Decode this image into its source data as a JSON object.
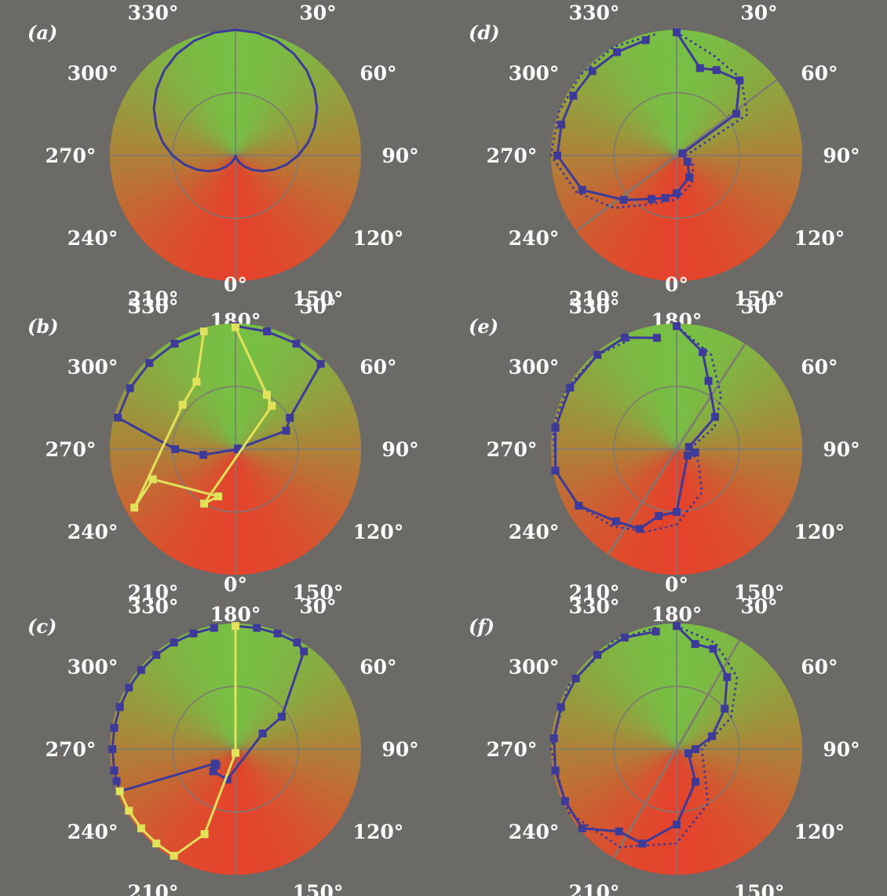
{
  "figure": {
    "colors": {
      "background": "#6b6a67",
      "front_green": "#77bf45",
      "back_red": "#e4442c",
      "blue_series": "#3d3a9a",
      "yellow_series": "#e2e25a",
      "axis_line": "#7d7a73"
    }
  },
  "chart_data": [
    {
      "type": "polar",
      "panel": "(a)",
      "angle_labels": [
        "0°",
        "30°",
        "60°",
        "90°",
        "120°",
        "150°",
        "180°",
        "210°",
        "240°",
        "270°",
        "300°",
        "330°"
      ],
      "r_max": 1.0,
      "reference_circle_r": 0.5,
      "gradient": "green at 0° to red at 180°",
      "extra_axis_deg": null,
      "series": [
        {
          "style": "cardioid",
          "color": "#3d3a9a",
          "markers": false,
          "theta_deg": [
            0,
            10,
            20,
            30,
            40,
            50,
            60,
            70,
            80,
            90,
            100,
            110,
            120,
            130,
            140,
            150,
            160,
            170,
            180,
            190,
            200,
            210,
            220,
            230,
            240,
            250,
            260,
            270,
            280,
            290,
            300,
            310,
            320,
            330,
            340,
            350
          ],
          "r": [
            1.0,
            0.992,
            0.97,
            0.933,
            0.883,
            0.821,
            0.75,
            0.671,
            0.587,
            0.5,
            0.413,
            0.329,
            0.25,
            0.179,
            0.117,
            0.067,
            0.03,
            0.008,
            0.0,
            0.008,
            0.03,
            0.067,
            0.117,
            0.179,
            0.25,
            0.329,
            0.413,
            0.5,
            0.587,
            0.671,
            0.75,
            0.821,
            0.883,
            0.933,
            0.97,
            0.992
          ]
        }
      ]
    },
    {
      "type": "polar",
      "panel": "(b)",
      "angle_labels": [
        "0°",
        "30°",
        "60°",
        "90°",
        "120°",
        "150°",
        "180°",
        "210°",
        "240°",
        "270°",
        "300°",
        "330°"
      ],
      "r_max": 1.0,
      "reference_circle_r": 0.5,
      "gradient": "green at 0° to red at 180°",
      "extra_axis_deg": null,
      "series": [
        {
          "style": "solid",
          "color": "#3d3a9a",
          "markers": true,
          "theta_deg": [
            0,
            15,
            30,
            45,
            60,
            70,
            75,
            90,
            260,
            270,
            285,
            300,
            315,
            330,
            345
          ],
          "r": [
            0.98,
            0.97,
            0.97,
            0.96,
            0.5,
            0.43,
            0.02,
            0.02,
            0.26,
            0.48,
            0.97,
            0.97,
            0.97,
            0.97,
            0.97
          ]
        },
        {
          "style": "solid",
          "color": "#e2e25a",
          "markers": true,
          "theta_deg": [
            0,
            30,
            40,
            210,
            200,
            250,
            240,
            310,
            330,
            345
          ],
          "r": [
            0.97,
            0.5,
            0.45,
            0.5,
            0.4,
            0.7,
            0.93,
            0.55,
            0.62,
            0.97
          ]
        }
      ]
    },
    {
      "type": "polar",
      "panel": "(c)",
      "angle_labels": [
        "0°",
        "30°",
        "60°",
        "90°",
        "120°",
        "150°",
        "180°",
        "210°",
        "240°",
        "270°",
        "300°",
        "330°"
      ],
      "r_max": 1.0,
      "reference_circle_r": 0.5,
      "gradient": "green at 0° to red at 180°",
      "extra_axis_deg": null,
      "series": [
        {
          "style": "solid",
          "color": "#3d3a9a",
          "markers": true,
          "theta_deg": [
            0,
            10,
            20,
            30,
            35,
            55,
            60,
            195,
            225,
            230,
            235,
            250,
            255,
            260,
            270,
            280,
            290,
            300,
            310,
            320,
            330,
            340,
            350
          ],
          "r": [
            0.98,
            0.98,
            0.98,
            0.98,
            0.95,
            0.45,
            0.25,
            0.25,
            0.25,
            0.2,
            0.2,
            0.98,
            0.98,
            0.98,
            0.98,
            0.98,
            0.98,
            0.98,
            0.98,
            0.98,
            0.98,
            0.98,
            0.98
          ]
        },
        {
          "style": "solid",
          "color": "#e2e25a",
          "markers": true,
          "theta_deg": [
            0,
            180,
            200,
            210,
            220,
            230,
            240,
            250
          ],
          "r": [
            0.98,
            0.03,
            0.72,
            0.98,
            0.98,
            0.98,
            0.98,
            0.98
          ]
        }
      ]
    },
    {
      "type": "polar",
      "panel": "(d)",
      "angle_labels": [
        "0°",
        "30°",
        "60°",
        "90°",
        "120°",
        "150°",
        "180°",
        "210°",
        "240°",
        "270°",
        "300°",
        "330°"
      ],
      "r_max": 1.0,
      "reference_circle_r": 0.5,
      "gradient": "green at 0° to red at 180°",
      "extra_axis_deg": 53,
      "series": [
        {
          "style": "solid",
          "color": "#3d3a9a",
          "markers": true,
          "theta_deg": [
            0,
            15,
            25,
            40,
            55,
            70,
            120,
            150,
            180,
            195,
            210,
            230,
            250,
            270,
            285,
            300,
            315,
            330,
            345
          ],
          "r": [
            0.98,
            0.72,
            0.75,
            0.78,
            0.58,
            0.05,
            0.1,
            0.2,
            0.3,
            0.35,
            0.4,
            0.55,
            0.8,
            0.95,
            0.95,
            0.95,
            0.95,
            0.95,
            0.95
          ]
        },
        {
          "style": "dotted",
          "color": "#3d3a9a",
          "markers": false,
          "theta_deg": [
            0,
            20,
            40,
            60,
            80,
            100,
            120,
            150,
            180,
            210,
            230,
            250,
            270,
            290,
            310,
            330,
            350
          ],
          "r": [
            0.98,
            0.85,
            0.8,
            0.65,
            0.1,
            0.05,
            0.15,
            0.25,
            0.35,
            0.45,
            0.65,
            0.85,
            1.0,
            1.0,
            1.0,
            1.0,
            0.98
          ]
        }
      ]
    },
    {
      "type": "polar",
      "panel": "(e)",
      "angle_labels": [
        "0°",
        "30°",
        "60°",
        "90°",
        "120°",
        "150°",
        "180°",
        "210°",
        "240°",
        "270°",
        "300°",
        "330°"
      ],
      "r_max": 1.0,
      "reference_circle_r": 0.5,
      "gradient": "green at 0° to red at 180°",
      "extra_axis_deg": 33,
      "series": [
        {
          "style": "solid",
          "color": "#3d3a9a",
          "markers": true,
          "theta_deg": [
            0,
            15,
            25,
            50,
            80,
            100,
            120,
            180,
            195,
            205,
            220,
            240,
            260,
            280,
            300,
            320,
            335,
            350
          ],
          "r": [
            0.98,
            0.8,
            0.6,
            0.4,
            0.1,
            0.15,
            0.1,
            0.5,
            0.55,
            0.7,
            0.75,
            0.9,
            0.98,
            0.98,
            0.98,
            0.98,
            0.98,
            0.9
          ]
        },
        {
          "style": "dotted",
          "color": "#3d3a9a",
          "markers": false,
          "theta_deg": [
            0,
            20,
            40,
            60,
            90,
            120,
            150,
            180,
            200,
            220,
            240,
            260,
            280,
            300,
            320,
            340
          ],
          "r": [
            0.98,
            0.8,
            0.55,
            0.35,
            0.1,
            0.2,
            0.4,
            0.6,
            0.7,
            0.8,
            0.9,
            0.98,
            1.0,
            1.0,
            0.98,
            0.95
          ]
        }
      ]
    },
    {
      "type": "polar",
      "panel": "(f)",
      "angle_labels": [
        "0°",
        "30°",
        "60°",
        "90°",
        "120°",
        "150°",
        "180°",
        "210°",
        "240°",
        "270°",
        "300°",
        "330°"
      ],
      "r_max": 1.0,
      "reference_circle_r": 0.5,
      "gradient": "green at 0° to red at 180°",
      "extra_axis_deg": 30,
      "series": [
        {
          "style": "solid",
          "color": "#3d3a9a",
          "markers": true,
          "theta_deg": [
            0,
            10,
            20,
            35,
            50,
            70,
            90,
            110,
            150,
            180,
            200,
            215,
            230,
            245,
            260,
            275,
            290,
            305,
            320,
            335,
            350
          ],
          "r": [
            0.98,
            0.85,
            0.85,
            0.7,
            0.5,
            0.3,
            0.15,
            0.1,
            0.3,
            0.6,
            0.8,
            0.8,
            0.98,
            0.98,
            0.98,
            0.98,
            0.98,
            0.98,
            0.98,
            0.98,
            0.95
          ]
        },
        {
          "style": "dotted",
          "color": "#3d3a9a",
          "markers": false,
          "theta_deg": [
            0,
            20,
            40,
            60,
            90,
            120,
            150,
            180,
            210,
            240,
            270,
            300,
            330,
            350
          ],
          "r": [
            0.98,
            0.9,
            0.75,
            0.5,
            0.2,
            0.25,
            0.5,
            0.75,
            0.9,
            1.0,
            1.0,
            1.0,
            1.0,
            0.98
          ]
        }
      ]
    }
  ]
}
